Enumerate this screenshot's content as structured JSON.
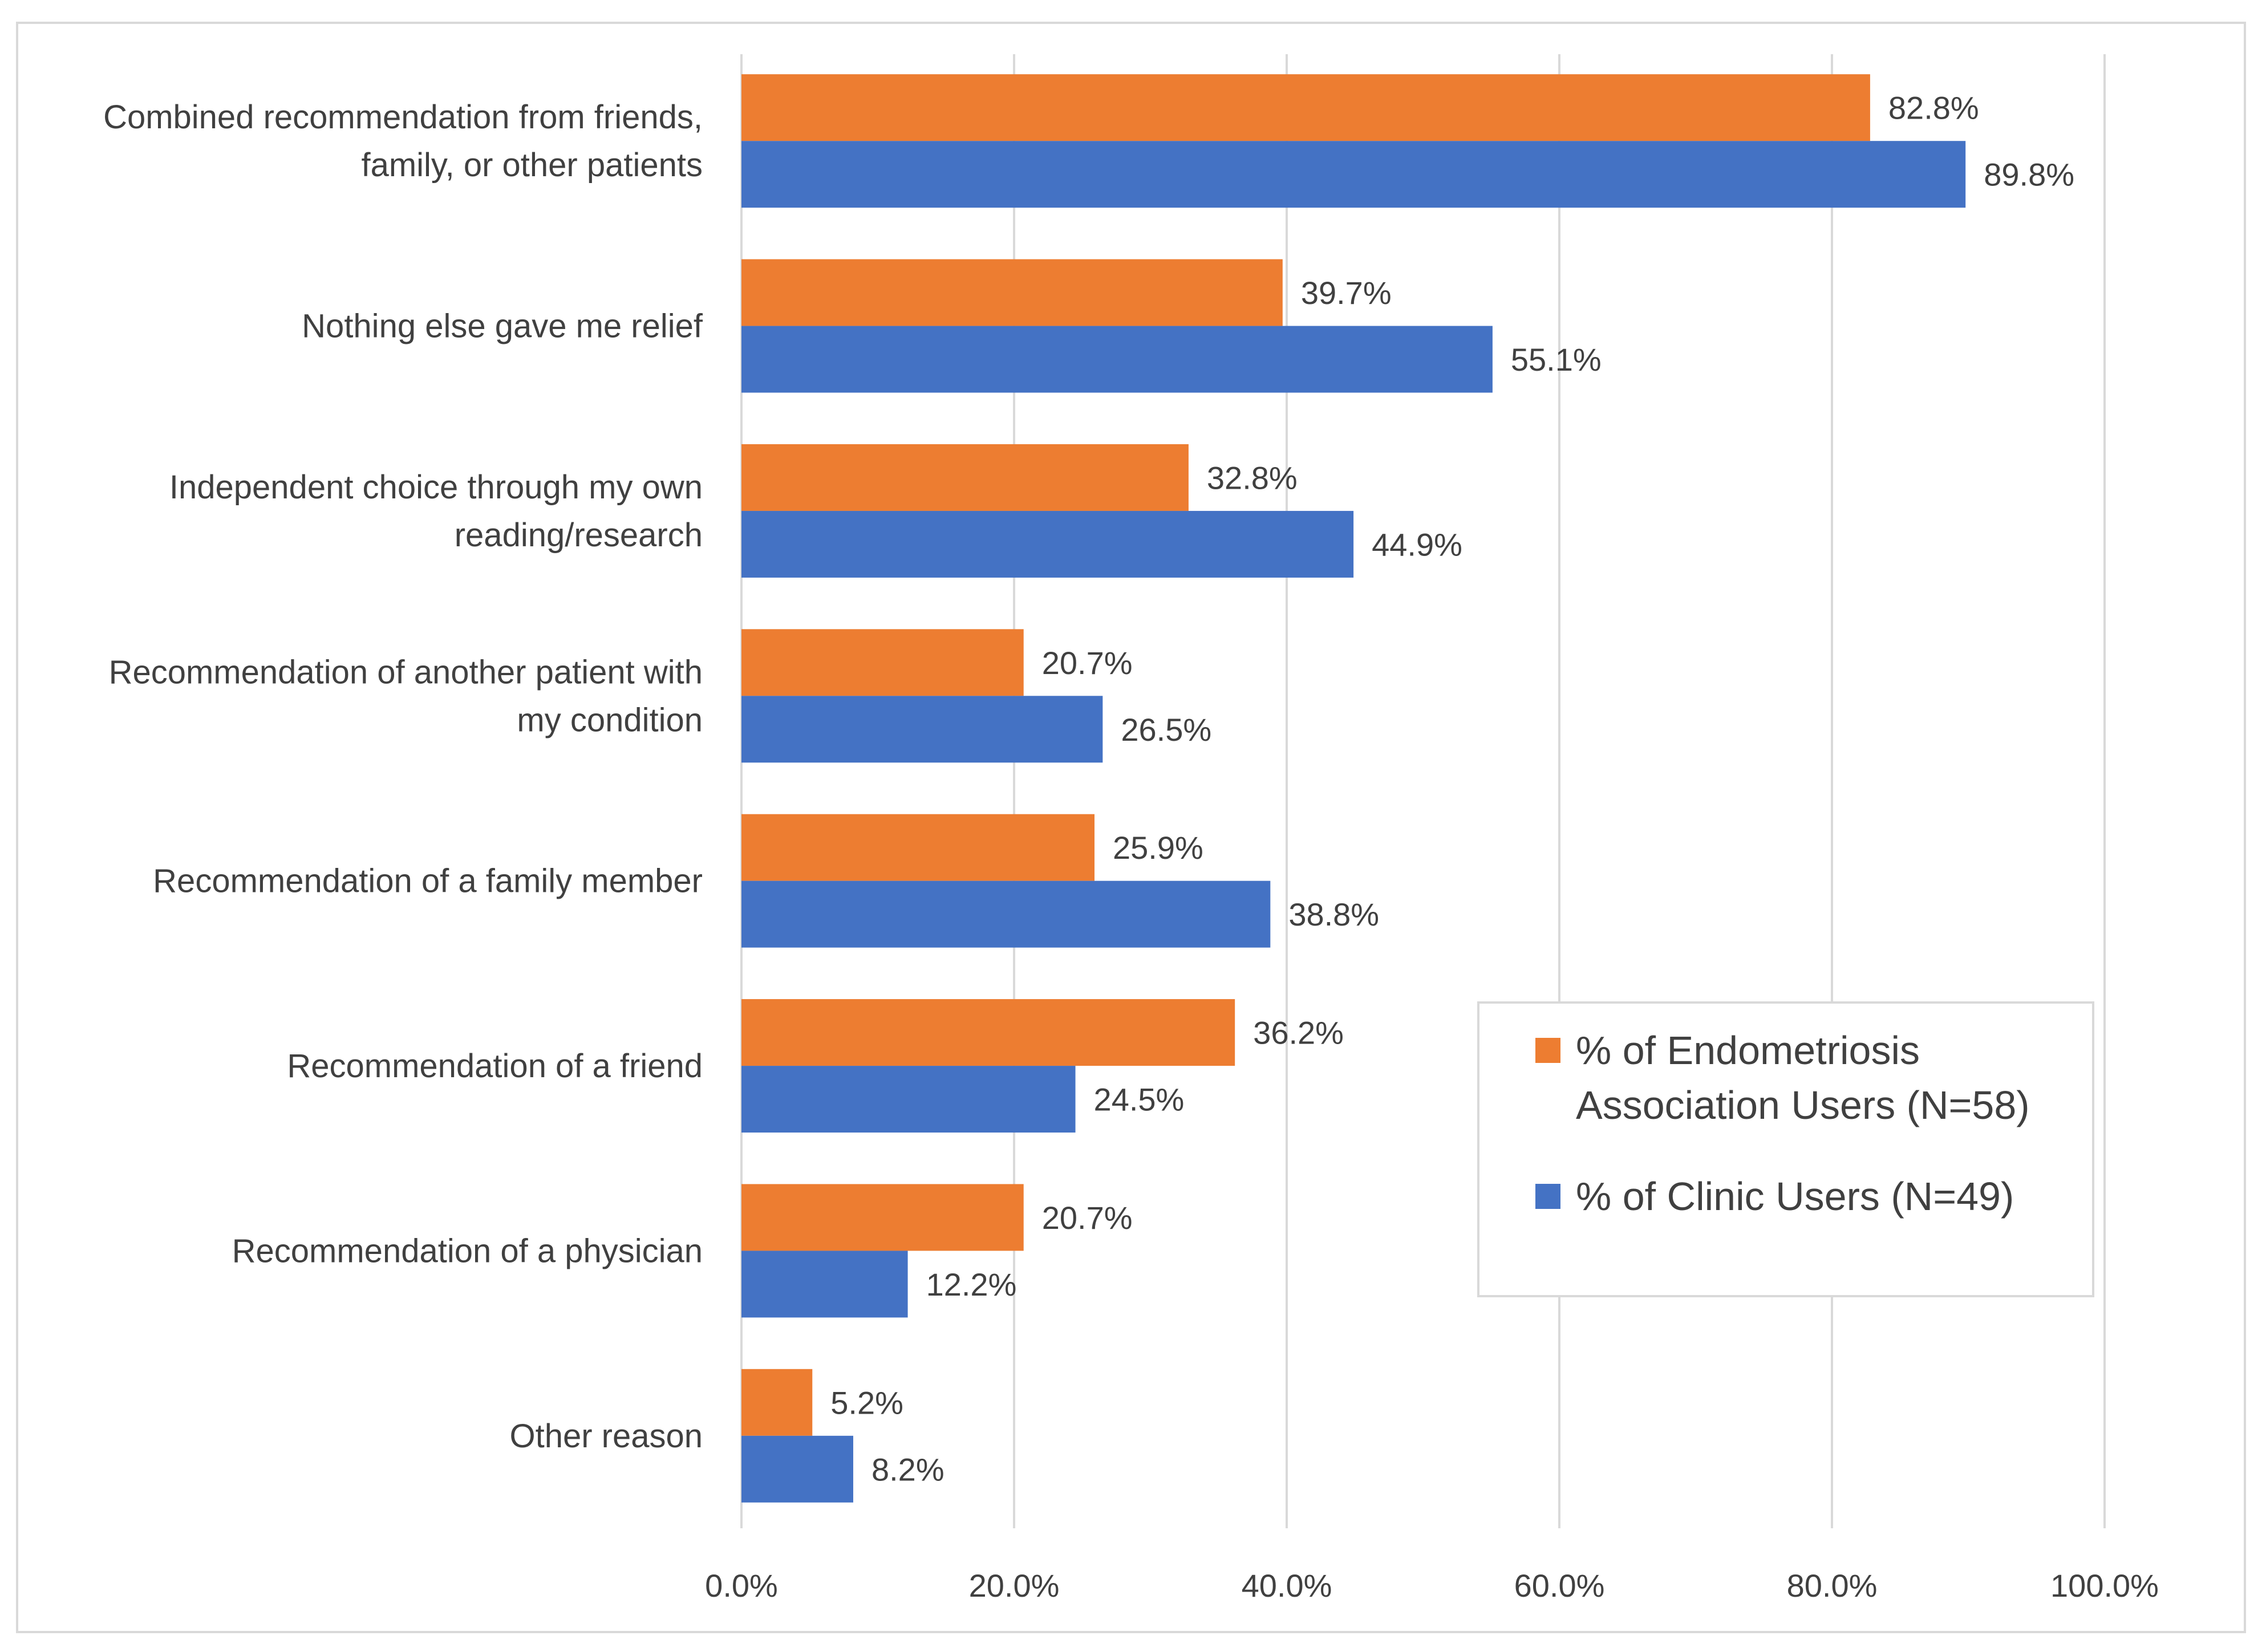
{
  "chart_data": {
    "type": "bar",
    "orientation": "horizontal",
    "title": "",
    "xlabel": "",
    "ylabel": "",
    "xlim": [
      0,
      100
    ],
    "grid": true,
    "legend_position": "middle-right",
    "categories": [
      [
        "Combined recommendation from friends,",
        "family, or other patients"
      ],
      [
        "Nothing else gave me relief"
      ],
      [
        "Independent choice through my own",
        "reading/research"
      ],
      [
        "Recommendation of another patient with",
        "my condition"
      ],
      [
        "Recommendation of a family member"
      ],
      [
        "Recommendation of a friend"
      ],
      [
        "Recommendation of a physician"
      ],
      [
        "Other reason"
      ]
    ],
    "x_ticks": [
      0,
      20,
      40,
      60,
      80,
      100
    ],
    "x_tick_labels": [
      "0.0%",
      "20.0%",
      "40.0%",
      "60.0%",
      "80.0%",
      "100.0%"
    ],
    "series": [
      {
        "name": "% of Endometriosis Association Users (N=58)",
        "legend_lines": [
          "% of Endometriosis",
          "Association Users (N=58)"
        ],
        "color": "#ED7D31",
        "values": [
          82.8,
          39.7,
          32.8,
          20.7,
          25.9,
          36.2,
          20.7,
          5.2
        ],
        "labels": [
          "82.8%",
          "39.7%",
          "32.8%",
          "20.7%",
          "25.9%",
          "36.2%",
          "20.7%",
          "5.2%"
        ]
      },
      {
        "name": "% of Clinic Users (N=49)",
        "legend_lines": [
          "% of Clinic Users (N=49)"
        ],
        "color": "#4472C4",
        "values": [
          89.8,
          55.1,
          44.9,
          26.5,
          38.8,
          24.5,
          12.2,
          8.2
        ],
        "labels": [
          "89.8%",
          "55.1%",
          "44.9%",
          "26.5%",
          "38.8%",
          "24.5%",
          "12.2%",
          "8.2%"
        ]
      }
    ],
    "colors": {
      "gridline": "#D9D9D9",
      "frame": "#D9D9D9",
      "text": "#404040"
    }
  }
}
